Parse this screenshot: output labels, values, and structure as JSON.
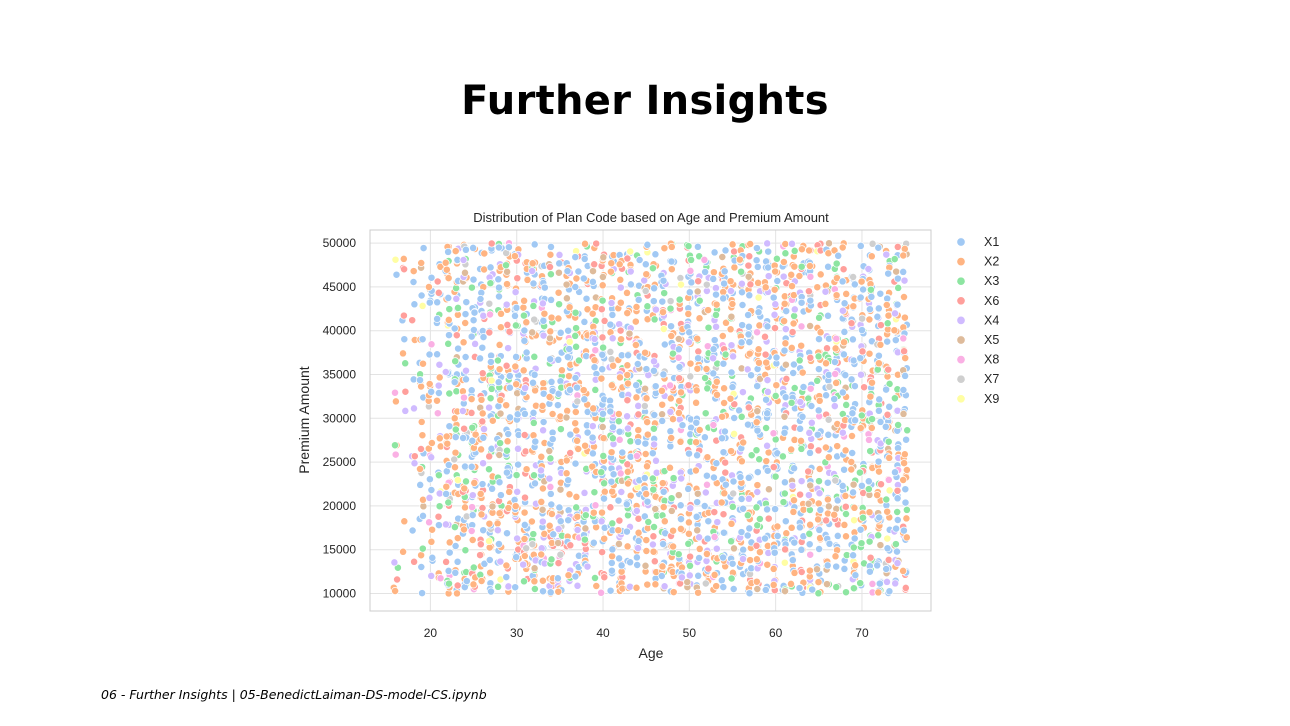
{
  "slide": {
    "title": "Further Insights",
    "footer": "06 - Further Insights | 05-BenedictLaiman-DS-model-CS.ipynb"
  },
  "chart_data": {
    "type": "scatter",
    "title": "Distribution of Plan Code based on Age and Premium Amount",
    "xlabel": "Age",
    "ylabel": "Premium Amount",
    "xlim": [
      13,
      78
    ],
    "ylim": [
      8000,
      51500
    ],
    "xticks": [
      20,
      30,
      40,
      50,
      60,
      70
    ],
    "yticks": [
      10000,
      15000,
      20000,
      25000,
      30000,
      35000,
      40000,
      45000,
      50000
    ],
    "x_range": [
      16,
      75
    ],
    "y_range": [
      10000,
      50000
    ],
    "grid": true,
    "legend_position": "outside-right",
    "series": [
      {
        "name": "X1",
        "color": "#a1c9f4",
        "weight": 0.34
      },
      {
        "name": "X2",
        "color": "#ffb482",
        "weight": 0.28
      },
      {
        "name": "X3",
        "color": "#8de5a1",
        "weight": 0.11
      },
      {
        "name": "X6",
        "color": "#ff9f9b",
        "weight": 0.07
      },
      {
        "name": "X4",
        "color": "#d0bbff",
        "weight": 0.1
      },
      {
        "name": "X5",
        "color": "#debb9b",
        "weight": 0.04
      },
      {
        "name": "X8",
        "color": "#fab0e4",
        "weight": 0.03
      },
      {
        "name": "X7",
        "color": "#cfcfcf",
        "weight": 0.02
      },
      {
        "name": "X9",
        "color": "#fffea3",
        "weight": 0.01
      }
    ]
  }
}
